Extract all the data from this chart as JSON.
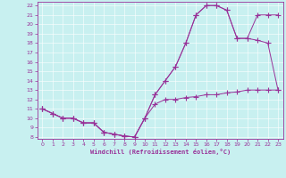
{
  "xlabel": "Windchill (Refroidissement éolien,°C)",
  "bg_color": "#c8f0f0",
  "line_color": "#993399",
  "xlim_min": -0.5,
  "xlim_max": 23.5,
  "ylim_min": 7.8,
  "ylim_max": 22.4,
  "xticks": [
    0,
    1,
    2,
    3,
    4,
    5,
    6,
    7,
    8,
    9,
    10,
    11,
    12,
    13,
    14,
    15,
    16,
    17,
    18,
    19,
    20,
    21,
    22,
    23
  ],
  "yticks": [
    8,
    9,
    10,
    11,
    12,
    13,
    14,
    15,
    16,
    17,
    18,
    19,
    20,
    21,
    22
  ],
  "curve1_x": [
    0,
    1,
    2,
    3,
    4,
    5,
    6,
    7,
    8,
    9,
    10,
    11,
    12,
    13,
    14,
    15,
    16,
    17,
    18,
    19,
    20,
    21,
    22,
    23
  ],
  "curve1_y": [
    11.0,
    10.5,
    10.0,
    10.0,
    9.5,
    9.5,
    8.5,
    8.3,
    8.1,
    8.0,
    10.0,
    11.5,
    12.0,
    12.0,
    12.2,
    12.3,
    12.5,
    12.5,
    12.7,
    12.8,
    13.0,
    13.0,
    13.0,
    13.0
  ],
  "curve2_x": [
    0,
    1,
    2,
    3,
    4,
    5,
    6,
    7,
    8,
    9,
    10,
    11,
    12,
    13,
    14,
    15,
    16,
    17,
    18,
    19,
    20,
    21,
    22,
    23
  ],
  "curve2_y": [
    11.0,
    10.5,
    10.0,
    10.0,
    9.5,
    9.5,
    8.5,
    8.3,
    8.1,
    8.0,
    10.0,
    12.5,
    14.0,
    15.5,
    18.0,
    21.0,
    22.0,
    22.0,
    21.5,
    18.5,
    18.5,
    21.0,
    21.0,
    21.0
  ],
  "curve3_x": [
    0,
    1,
    2,
    3,
    4,
    5,
    6,
    7,
    8,
    9,
    10,
    11,
    12,
    13,
    14,
    15,
    16,
    17,
    18,
    19,
    20,
    21,
    22,
    23
  ],
  "curve3_y": [
    11.0,
    10.5,
    10.0,
    10.0,
    9.5,
    9.5,
    8.5,
    8.3,
    8.1,
    8.0,
    10.0,
    12.5,
    14.0,
    15.5,
    18.0,
    21.0,
    22.0,
    22.0,
    21.5,
    18.5,
    18.5,
    18.3,
    18.0,
    13.0
  ],
  "tick_labelsize": 4.5,
  "xlabel_fontsize": 5.0,
  "lw": 0.7,
  "markersize": 2.0
}
